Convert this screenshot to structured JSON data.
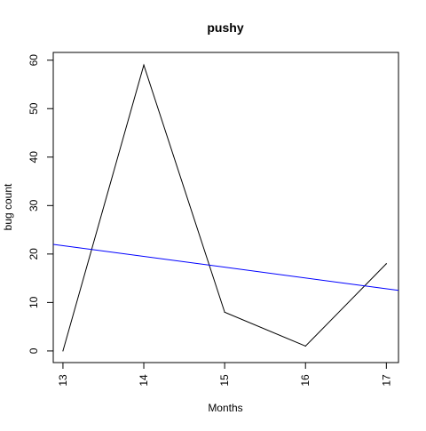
{
  "chart_data": {
    "type": "line",
    "title": "pushy",
    "xlabel": "Months",
    "ylabel": "bug count",
    "x": [
      13,
      14,
      15,
      16,
      17
    ],
    "x_ticks": [
      "13",
      "14",
      "15",
      "16",
      "17"
    ],
    "y_ticks": [
      "0",
      "10",
      "20",
      "30",
      "40",
      "50",
      "60"
    ],
    "xlim": [
      12.88,
      17.15
    ],
    "ylim": [
      -2.4,
      61.6
    ],
    "grid": false,
    "series": [
      {
        "values": [
          0,
          59,
          8,
          1,
          18
        ],
        "color": "#000000"
      }
    ],
    "trend_line": {
      "x": [
        12.88,
        17.15
      ],
      "y": [
        22.0,
        12.5
      ],
      "color": "#0000ff"
    }
  }
}
